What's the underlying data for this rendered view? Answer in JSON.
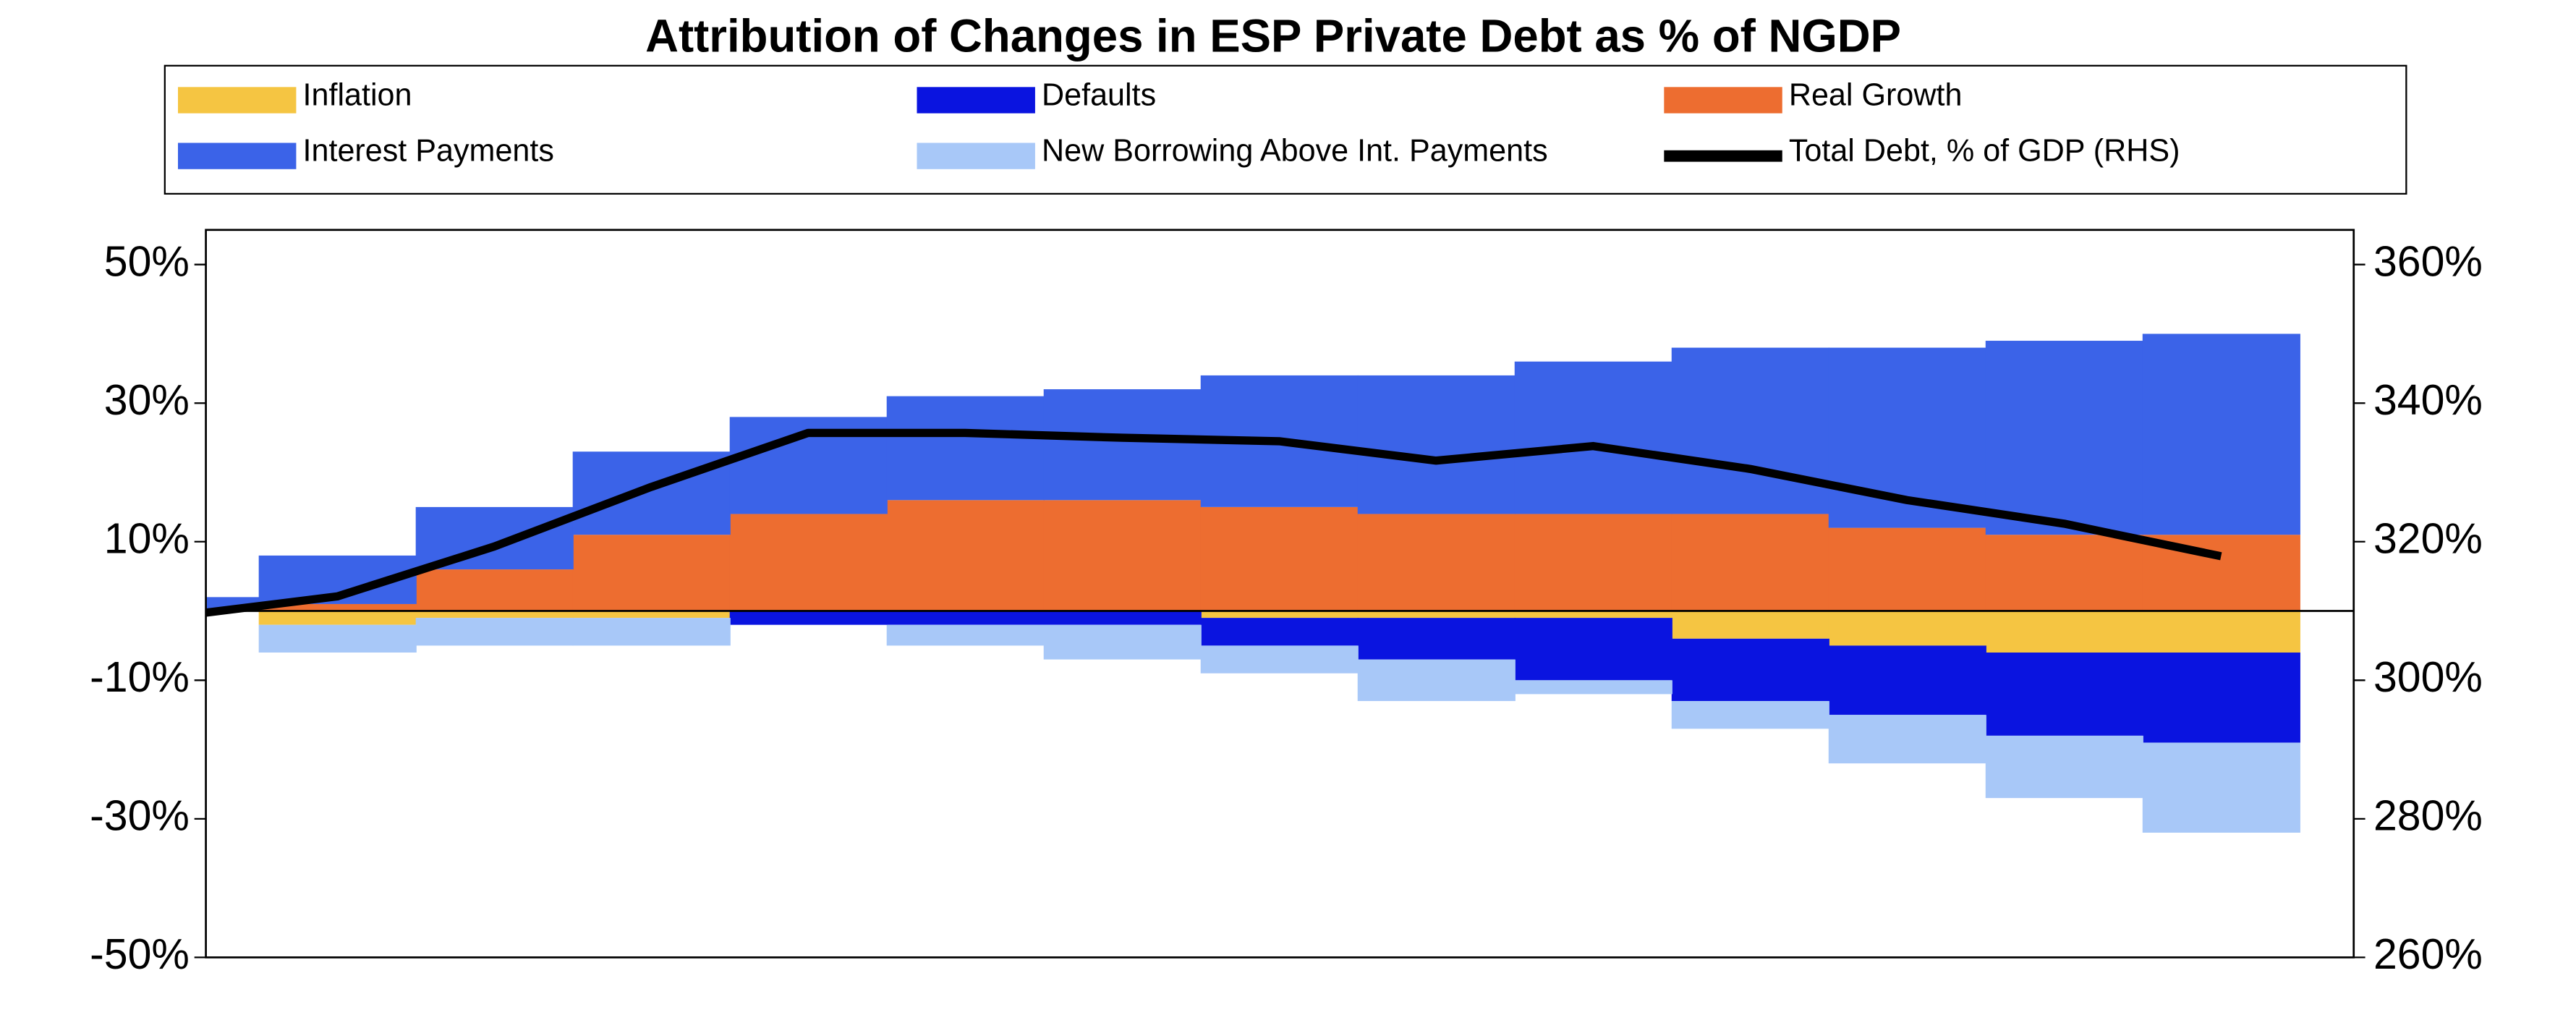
{
  "chart_data": {
    "type": "stacked-step-area",
    "title": "Attribution of Changes in ESP Private Debt as % of NGDP",
    "categories": [
      null,
      null,
      null,
      null,
      null,
      null,
      null,
      null,
      null,
      null,
      null,
      null,
      null,
      null
    ],
    "series": [
      {
        "name": "Inflation",
        "color": "#f5c542",
        "values": [
          0,
          -2,
          -1,
          -1,
          0,
          0,
          0,
          -1,
          -1,
          -1,
          -4,
          -5,
          -6,
          -6
        ]
      },
      {
        "name": "Defaults",
        "color": "#0a14e0",
        "values": [
          0,
          0,
          0,
          0,
          -2,
          -2,
          -2,
          -4,
          -6,
          -9,
          -9,
          -10,
          -12,
          -13
        ]
      },
      {
        "name": "Real Growth",
        "color": "#ed6d30",
        "values": [
          0,
          1,
          6,
          11,
          14,
          16,
          16,
          15,
          14,
          14,
          14,
          12,
          11,
          11
        ]
      },
      {
        "name": "Interest Payments",
        "color": "#3b63e8",
        "values": [
          2,
          7,
          9,
          12,
          14,
          15,
          16,
          19,
          20,
          22,
          24,
          26,
          28,
          29
        ]
      },
      {
        "name": "New Borrowing Above Int. Payments",
        "color": "#a8c8f8",
        "values": [
          0,
          -4,
          -4,
          -4,
          0,
          -3,
          -5,
          -4,
          -6,
          -2,
          -4,
          -7,
          -9,
          -13
        ]
      },
      {
        "name": "Total Debt, % of GDP (RHS)",
        "color": "#000000",
        "type": "line",
        "axis": "y2",
        "values": [
          309.3,
          312.1,
          319.3,
          327.9,
          335.7,
          335.7,
          335,
          334.5,
          331.7,
          333.8,
          330.5,
          326,
          322.6,
          317.9
        ]
      }
    ],
    "ylim": [
      -50,
      55
    ],
    "yticks": [
      {
        "value": -50,
        "label": "-50%"
      },
      {
        "value": -30,
        "label": "-30%"
      },
      {
        "value": -10,
        "label": "-10%"
      },
      {
        "value": 10,
        "label": "10%"
      },
      {
        "value": 30,
        "label": "30%"
      },
      {
        "value": 50,
        "label": "50%"
      }
    ],
    "y2lim": [
      260,
      365
    ],
    "y2ticks": [
      {
        "value": 260,
        "label": "260%"
      },
      {
        "value": 280,
        "label": "280%"
      },
      {
        "value": 300,
        "label": "300%"
      },
      {
        "value": 320,
        "label": "320%"
      },
      {
        "value": 340,
        "label": "340%"
      },
      {
        "value": 360,
        "label": "360%"
      }
    ],
    "legend": "top"
  }
}
